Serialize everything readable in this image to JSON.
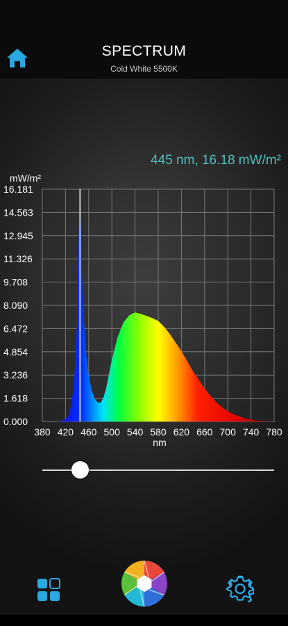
{
  "header": {
    "title": "SPECTRUM",
    "subtitle": "Cold White 5500K"
  },
  "readout": "445 nm, 16.18 mW/m²",
  "accent_color": "#2aa8e0",
  "readout_color": "#4ec0c0",
  "icons": {
    "home": "home-icon",
    "grid": "grid-icon",
    "camera": "shutter-icon",
    "settings": "gear-icon"
  },
  "slider": {
    "value_nm": 445
  },
  "chart_data": {
    "type": "area",
    "ylabel": "mW/m²",
    "xlabel": "nm",
    "x_ticks": [
      380,
      420,
      460,
      500,
      540,
      580,
      620,
      660,
      700,
      740,
      780
    ],
    "y_ticks": [
      "0.000",
      "1.618",
      "3.236",
      "4.854",
      "6.472",
      "8.090",
      "9.708",
      "11.326",
      "12.945",
      "14.563",
      "16.181"
    ],
    "xlim": [
      380,
      780
    ],
    "ylim": [
      0,
      16.181
    ],
    "grid": true,
    "cursor_nm": 445,
    "series": [
      {
        "x": [
          380,
          400,
          410,
          420,
          425,
          430,
          435,
          440,
          442,
          445,
          448,
          450,
          455,
          460,
          465,
          470,
          475,
          480,
          485,
          490,
          495,
          500,
          510,
          520,
          530,
          540,
          550,
          560,
          570,
          580,
          590,
          600,
          610,
          620,
          630,
          640,
          650,
          660,
          670,
          680,
          690,
          700,
          710,
          720,
          730,
          740,
          750,
          760,
          770,
          780
        ],
        "y": [
          0,
          0,
          0.02,
          0.15,
          0.4,
          1.1,
          2.8,
          7.0,
          11.5,
          16.18,
          11.0,
          8.2,
          5.0,
          3.2,
          2.2,
          1.6,
          1.35,
          1.3,
          1.6,
          2.3,
          3.3,
          4.3,
          5.9,
          6.9,
          7.4,
          7.6,
          7.5,
          7.35,
          7.2,
          7.0,
          6.6,
          6.1,
          5.5,
          4.9,
          4.2,
          3.5,
          2.9,
          2.3,
          1.8,
          1.35,
          1.0,
          0.72,
          0.5,
          0.35,
          0.22,
          0.14,
          0.08,
          0.04,
          0.02,
          0
        ]
      }
    ]
  }
}
